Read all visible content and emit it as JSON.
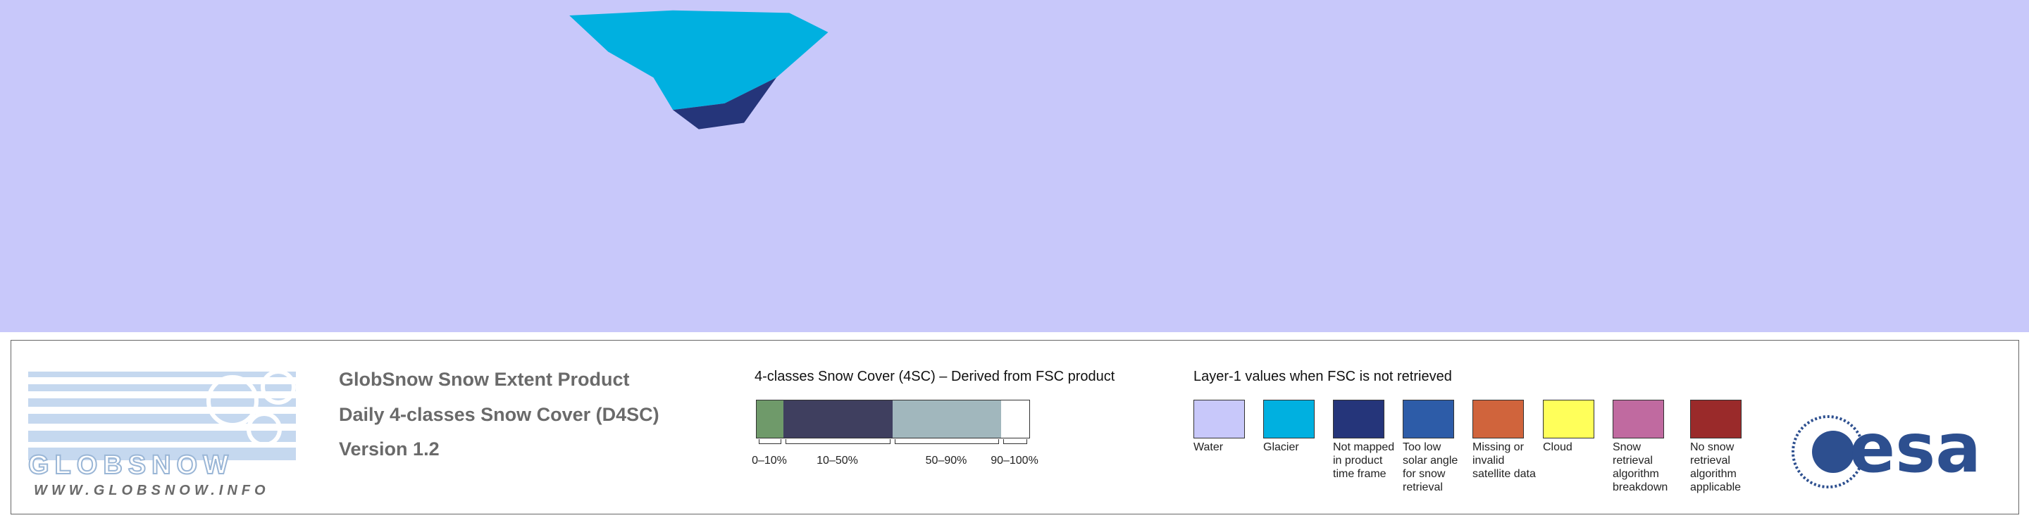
{
  "logo": {
    "name": "GLOBSNOW",
    "url": "WWW.GLOBSNOW.INFO"
  },
  "product": {
    "title": "GlobSnow Snow Extent Product",
    "subtitle": "Daily 4-classes Snow Cover (D4SC)",
    "version": "Version 1.2"
  },
  "snow_cover_legend": {
    "title": "4-classes Snow Cover (4SC) – Derived from FSC product",
    "classes": [
      {
        "label": "0–10%",
        "color": "#6f9a6a"
      },
      {
        "label": "10–50%",
        "color": "#3f3f5f"
      },
      {
        "label": "50–90%",
        "color": "#a1b7bd"
      },
      {
        "label": "90–100%",
        "color": "#ffffff"
      }
    ]
  },
  "layer1_legend": {
    "title": "Layer-1 values when FSC is not retrieved",
    "items": [
      {
        "label": "Water",
        "color": "#c8c8fa"
      },
      {
        "label": "Glacier",
        "color": "#00b0e0"
      },
      {
        "label": "Not mapped in product time frame",
        "color": "#25357a"
      },
      {
        "label": "Too low solar angle for snow retrieval",
        "color": "#2d5ca8"
      },
      {
        "label": "Missing or invalid satellite data",
        "color": "#d0643c"
      },
      {
        "label": "Cloud",
        "color": "#ffff5a"
      },
      {
        "label": "Snow retrieval algorithm breakdown",
        "color": "#c06aa0"
      },
      {
        "label": "No snow retrieval algorithm applicable",
        "color": "#9a2a2a"
      }
    ]
  },
  "esa_logo": "esa"
}
